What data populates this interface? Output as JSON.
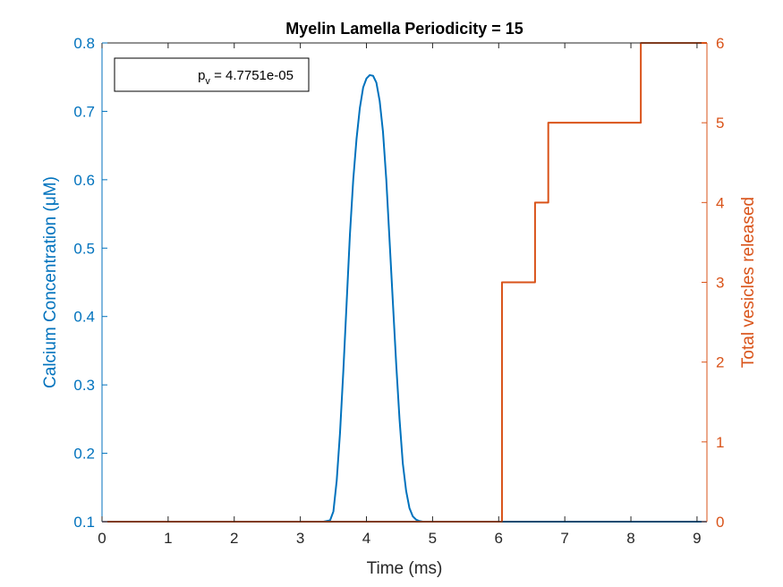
{
  "chart_data": {
    "type": "line",
    "title": "Myelin Lamella Periodicity = 15",
    "xlabel": "Time (ms)",
    "ylabel_left": "Calcium Concentration (μM)",
    "ylabel_right": "Total vesicles released",
    "xlim": [
      0,
      9.15
    ],
    "ylim_left": [
      0.1,
      0.8
    ],
    "ylim_right": [
      0,
      6
    ],
    "x_ticks": [
      0,
      1,
      2,
      3,
      4,
      5,
      6,
      7,
      8,
      9
    ],
    "y_left_ticks": [
      0.1,
      0.2,
      0.3,
      0.4,
      0.5,
      0.6,
      0.7,
      0.8
    ],
    "y_right_ticks": [
      0,
      1,
      2,
      3,
      4,
      5,
      6
    ],
    "grid": false,
    "annotation": {
      "text_main": "p",
      "text_sub": "v",
      "text_value": " = 4.7751e-05"
    },
    "series": [
      {
        "axis": "left",
        "color": "#0072BD",
        "x": [
          0,
          3.35,
          3.45,
          3.5,
          3.55,
          3.6,
          3.65,
          3.7,
          3.75,
          3.8,
          3.85,
          3.9,
          3.95,
          4.0,
          4.05,
          4.1,
          4.15,
          4.2,
          4.25,
          4.3,
          4.35,
          4.4,
          4.45,
          4.5,
          4.55,
          4.6,
          4.65,
          4.7,
          4.75,
          4.8,
          4.85,
          4.9,
          5.0,
          5.2,
          9.15
        ],
        "y": [
          0.1,
          0.1,
          0.102,
          0.115,
          0.16,
          0.23,
          0.32,
          0.42,
          0.52,
          0.6,
          0.66,
          0.705,
          0.735,
          0.748,
          0.753,
          0.752,
          0.742,
          0.715,
          0.67,
          0.6,
          0.51,
          0.42,
          0.33,
          0.25,
          0.185,
          0.145,
          0.12,
          0.108,
          0.103,
          0.101,
          0.1,
          0.1,
          0.1,
          0.1,
          0.1
        ]
      },
      {
        "axis": "right",
        "color": "#D95319",
        "step": true,
        "x": [
          0,
          6.05,
          6.55,
          6.75,
          8.15,
          9.15
        ],
        "y": [
          0,
          3,
          4,
          5,
          6,
          6
        ]
      }
    ]
  }
}
